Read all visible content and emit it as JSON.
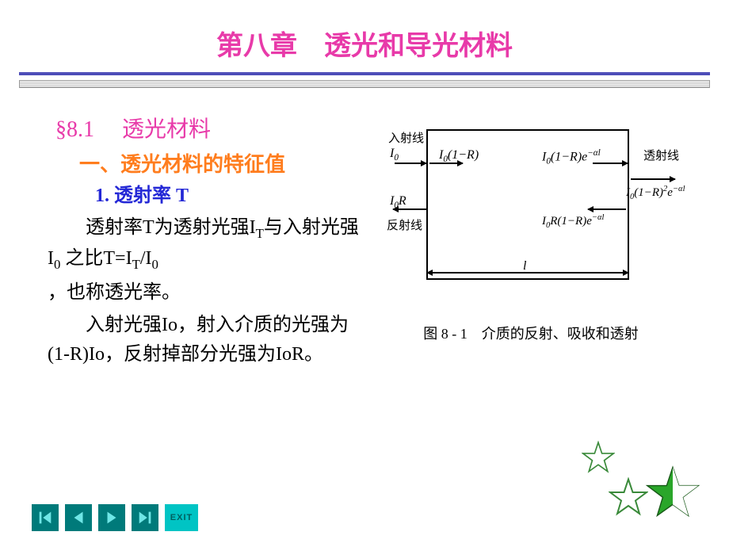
{
  "title": "第八章　透光和导光材料",
  "section": "§8.1　 透光材料",
  "sub1": "一、透光材料的特征值",
  "sub2": "1. 透射率 T",
  "para1_html": "透射率T为透射光强I<sub>T</sub>与入射光强I<sub>0</sub> 之比T=I<sub>T</sub>/I<sub>0</sub>",
  "para1b": "，也称透光率。",
  "para2": "入射光强Io，射入介质的光强为(1-R)Io，反射掉部分光强为IoR。",
  "diagram": {
    "incident_label": "入射线",
    "reflected_label": "反射线",
    "transmitted_label": "透射线",
    "I0": "I<sub>0</sub>",
    "I0_1mR": "I<sub>0</sub>(1−R)",
    "I0_1mR_eal": "I<sub>0</sub>(1−R)e<sup>−α<i>l</i></sup>",
    "I0_1mR2_eal": "I<sub>0</sub>(1−R)<sup>2</sup>e<sup>−α<i>l</i></sup>",
    "I0R": "I<sub>0</sub>R",
    "I0R_1mR_eal": "I<sub>0</sub>R(1−R)e<sup>−α<i>l</i></sup>",
    "length": "l",
    "caption": "图 8 - 1　介质的反射、吸收和透射"
  },
  "nav": {
    "first": "first",
    "prev": "prev",
    "next": "next",
    "last": "last",
    "exit": "EXIT"
  },
  "colors": {
    "title": "#e83aa9",
    "section": "#e83aa9",
    "sub1": "#ff7d1e",
    "sub2": "#2327d6",
    "hr1": "#4d4db8",
    "nav_bg": "#007a7a",
    "nav_fg": "#6fe6e6",
    "exit_bg": "#00c4c4",
    "star_green": "#2aa62a",
    "star_outline": "#3a8a3a"
  }
}
